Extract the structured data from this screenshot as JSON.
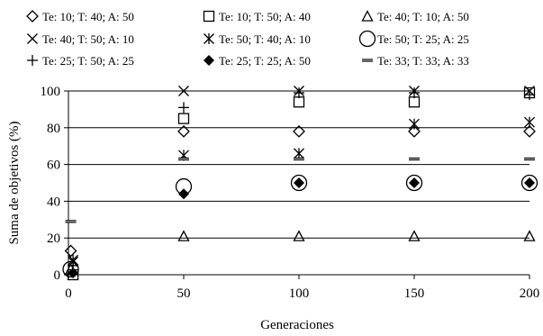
{
  "chart_data": {
    "type": "scatter",
    "xlabel": "Generaciones",
    "ylabel": "Suma de objetivos (%)",
    "xlim": [
      0,
      200
    ],
    "ylim": [
      0,
      100
    ],
    "x_ticks": [
      "0",
      "50",
      "100",
      "150",
      "200"
    ],
    "y_ticks": [
      "0",
      "20",
      "40",
      "60",
      "80",
      "100"
    ],
    "horizontal_gridlines": true,
    "legend_position": "top",
    "series": [
      {
        "name": "Te: 10; T: 40; A: 50",
        "marker": "diamond-open",
        "x": [
          1,
          50,
          100,
          150,
          200
        ],
        "y": [
          13,
          78,
          78,
          78,
          78
        ]
      },
      {
        "name": "Te: 10; T: 50; A: 40",
        "marker": "square-open",
        "x": [
          2,
          50,
          100,
          150,
          200
        ],
        "y": [
          0,
          85,
          94,
          94,
          99
        ]
      },
      {
        "name": "Te: 40; T: 10; A: 50",
        "marker": "triangle-open",
        "x": [
          1,
          50,
          100,
          150,
          200
        ],
        "y": [
          3,
          21,
          21,
          21,
          21
        ]
      },
      {
        "name": "Te: 40; T: 50; A: 10",
        "marker": "x",
        "x": [
          2,
          50,
          100,
          150,
          200
        ],
        "y": [
          7,
          100,
          100,
          100,
          100
        ]
      },
      {
        "name": "Te: 50; T: 40; A: 10",
        "marker": "asterisk",
        "x": [
          2,
          50,
          100,
          150,
          200
        ],
        "y": [
          8,
          65,
          66,
          82,
          83
        ]
      },
      {
        "name": "Te: 50; T: 25; A: 25",
        "marker": "circle-open",
        "x": [
          1,
          50,
          100,
          150,
          200
        ],
        "y": [
          3,
          48,
          50,
          50,
          50
        ]
      },
      {
        "name": "Te: 25; T: 50; A: 25",
        "marker": "plus",
        "x": [
          2,
          50,
          100,
          150,
          200
        ],
        "y": [
          5,
          91,
          99,
          99,
          98
        ]
      },
      {
        "name": "Te: 25; T: 25; A: 50",
        "marker": "diamond-filled",
        "x": [
          2,
          50,
          100,
          150,
          200
        ],
        "y": [
          1,
          44,
          50,
          50,
          50
        ]
      },
      {
        "name": "Te: 33; T: 33; A: 33",
        "marker": "dash",
        "x": [
          1,
          50,
          100,
          150,
          200
        ],
        "y": [
          29,
          63,
          63,
          63,
          63
        ]
      }
    ]
  }
}
